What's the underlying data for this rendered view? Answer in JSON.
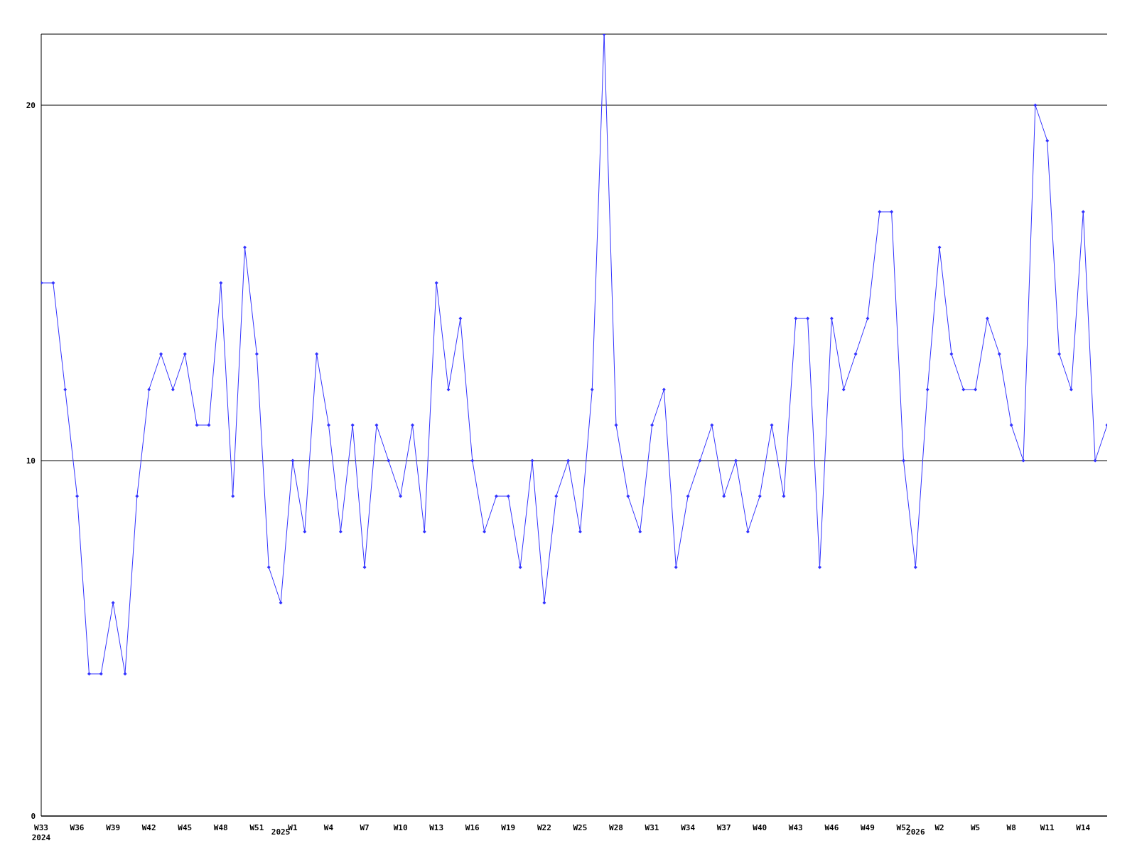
{
  "chart_data": {
    "type": "line",
    "categories": [
      "W33\n2024",
      null,
      null,
      "W36",
      null,
      null,
      "W39",
      null,
      null,
      "W42",
      null,
      null,
      "W45",
      null,
      null,
      "W48",
      null,
      null,
      "W51",
      null,
      "\n2025",
      "W1",
      null,
      null,
      "W4",
      null,
      null,
      "W7",
      null,
      null,
      "W10",
      null,
      null,
      "W13",
      null,
      null,
      "W16",
      null,
      null,
      "W19",
      null,
      null,
      "W22",
      null,
      null,
      "W25",
      null,
      null,
      "W28",
      null,
      null,
      "W31",
      null,
      null,
      "W34",
      null,
      null,
      "W37",
      null,
      null,
      "W40",
      null,
      null,
      "W43",
      null,
      null,
      "W46",
      null,
      null,
      "W49",
      null,
      null,
      "W52",
      "\n2026",
      null,
      "W2",
      null,
      null,
      "W5",
      null,
      null,
      "W8",
      null,
      null,
      "W11",
      null,
      null,
      "W14",
      null,
      null
    ],
    "series": [
      {
        "color": "#3333ff",
        "values": [
          15,
          15,
          12,
          9,
          4,
          4,
          6,
          4,
          9,
          12,
          13,
          12,
          13,
          11,
          11,
          15,
          9,
          16,
          13,
          7,
          6,
          10,
          8,
          13,
          11,
          8,
          11,
          7,
          11,
          10,
          9,
          11,
          8,
          15,
          12,
          14,
          10,
          8,
          9,
          9,
          7,
          10,
          6,
          9,
          10,
          8,
          12,
          22,
          11,
          9,
          8,
          11,
          12,
          7,
          9,
          10,
          11,
          9,
          10,
          8,
          9,
          11,
          9,
          14,
          14,
          7,
          14,
          12,
          13,
          14,
          17,
          17,
          10,
          7,
          12,
          16,
          13,
          12,
          12,
          14,
          13,
          11,
          10,
          20,
          19,
          13,
          12,
          17,
          10,
          11
        ]
      }
    ],
    "ylim": [
      0,
      22
    ],
    "yticks": [
      0,
      10,
      20
    ],
    "grid": "y",
    "marker": "diamond",
    "line_style": "solid",
    "legend": false
  }
}
